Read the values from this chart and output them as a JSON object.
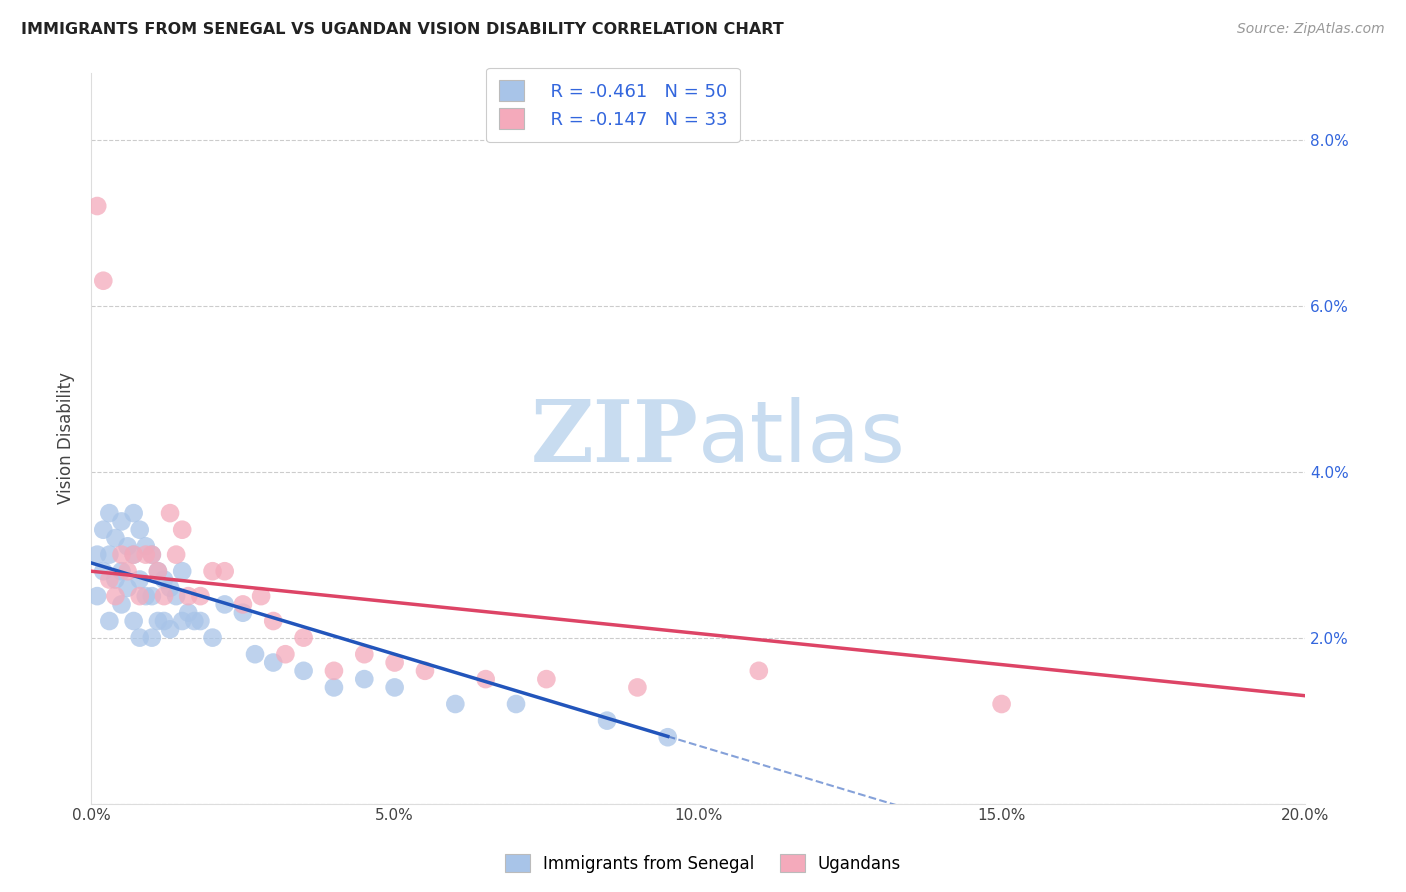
{
  "title": "IMMIGRANTS FROM SENEGAL VS UGANDAN VISION DISABILITY CORRELATION CHART",
  "source": "Source: ZipAtlas.com",
  "ylabel": "Vision Disability",
  "xlim": [
    0.0,
    0.2
  ],
  "ylim": [
    0.0,
    0.088
  ],
  "yticks": [
    0.0,
    0.02,
    0.04,
    0.06,
    0.08
  ],
  "xticks": [
    0.0,
    0.05,
    0.1,
    0.15,
    0.2
  ],
  "blue_R": "-0.461",
  "blue_N": "50",
  "pink_R": "-0.147",
  "pink_N": "33",
  "blue_color": "#A8C4E8",
  "pink_color": "#F4AABB",
  "blue_line_color": "#2255BB",
  "pink_line_color": "#DD4466",
  "text_blue": "#3366DD",
  "watermark_color": "#C8DCF0",
  "blue_scatter_x": [
    0.001,
    0.001,
    0.002,
    0.002,
    0.003,
    0.003,
    0.003,
    0.004,
    0.004,
    0.005,
    0.005,
    0.005,
    0.006,
    0.006,
    0.007,
    0.007,
    0.007,
    0.008,
    0.008,
    0.008,
    0.009,
    0.009,
    0.01,
    0.01,
    0.01,
    0.011,
    0.011,
    0.012,
    0.012,
    0.013,
    0.013,
    0.014,
    0.015,
    0.015,
    0.016,
    0.017,
    0.018,
    0.02,
    0.022,
    0.025,
    0.027,
    0.03,
    0.035,
    0.04,
    0.045,
    0.05,
    0.06,
    0.07,
    0.085,
    0.095
  ],
  "blue_scatter_y": [
    0.03,
    0.025,
    0.033,
    0.028,
    0.035,
    0.03,
    0.022,
    0.032,
    0.027,
    0.034,
    0.028,
    0.024,
    0.031,
    0.026,
    0.035,
    0.03,
    0.022,
    0.033,
    0.027,
    0.02,
    0.031,
    0.025,
    0.03,
    0.025,
    0.02,
    0.028,
    0.022,
    0.027,
    0.022,
    0.026,
    0.021,
    0.025,
    0.028,
    0.022,
    0.023,
    0.022,
    0.022,
    0.02,
    0.024,
    0.023,
    0.018,
    0.017,
    0.016,
    0.014,
    0.015,
    0.014,
    0.012,
    0.012,
    0.01,
    0.008
  ],
  "pink_scatter_x": [
    0.001,
    0.002,
    0.003,
    0.004,
    0.005,
    0.006,
    0.007,
    0.008,
    0.009,
    0.01,
    0.011,
    0.012,
    0.013,
    0.014,
    0.015,
    0.016,
    0.018,
    0.02,
    0.022,
    0.025,
    0.028,
    0.03,
    0.032,
    0.035,
    0.04,
    0.045,
    0.05,
    0.055,
    0.065,
    0.075,
    0.09,
    0.11,
    0.15
  ],
  "pink_scatter_y": [
    0.072,
    0.063,
    0.027,
    0.025,
    0.03,
    0.028,
    0.03,
    0.025,
    0.03,
    0.03,
    0.028,
    0.025,
    0.035,
    0.03,
    0.033,
    0.025,
    0.025,
    0.028,
    0.028,
    0.024,
    0.025,
    0.022,
    0.018,
    0.02,
    0.016,
    0.018,
    0.017,
    0.016,
    0.015,
    0.015,
    0.014,
    0.016,
    0.012
  ],
  "blue_line_x0": 0.0,
  "blue_line_x_solid_end": 0.095,
  "blue_line_x_dash_end": 0.145,
  "blue_line_y0": 0.029,
  "blue_line_slope": -0.22,
  "pink_line_y0": 0.028,
  "pink_line_slope": -0.075
}
